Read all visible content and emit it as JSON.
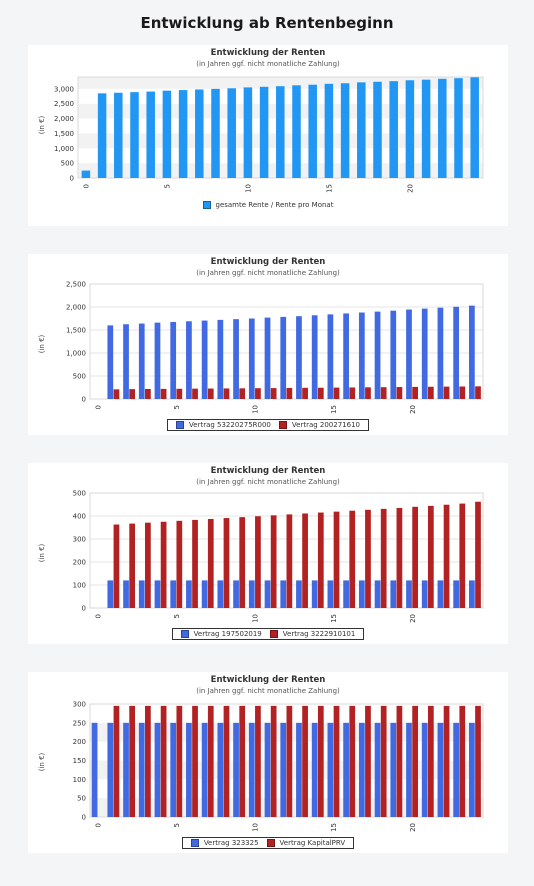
{
  "page": {
    "title": "Entwicklung ab Rentenbeginn"
  },
  "charts": [
    {
      "title": "Entwicklung der Renten",
      "subtitle": "(in Jahren ggf. nicht monatliche Zahlung)",
      "ylabel": "(in €)",
      "legend_bordered": false
    },
    {
      "title": "Entwicklung der Renten",
      "subtitle": "(in Jahren ggf. nicht monatliche Zahlung)",
      "ylabel": "(in €)",
      "legend_bordered": true
    },
    {
      "title": "Entwicklung der Renten",
      "subtitle": "(in Jahren ggf. nicht monatliche Zahlung)",
      "ylabel": "(in €)",
      "legend_bordered": true
    },
    {
      "title": "Entwicklung der Renten",
      "subtitle": "(in Jahren ggf. nicht monatliche Zahlung)",
      "ylabel": "(in €)",
      "legend_bordered": true
    }
  ],
  "chart_data": [
    {
      "type": "bar",
      "title": "Entwicklung der Renten",
      "subtitle": "(in Jahren ggf. nicht monatliche Zahlung)",
      "ylabel": "(in €)",
      "x": [
        0,
        1,
        2,
        3,
        4,
        5,
        6,
        7,
        8,
        9,
        10,
        11,
        12,
        13,
        14,
        15,
        16,
        17,
        18,
        19,
        20,
        21,
        22,
        23,
        24
      ],
      "x_ticks": [
        0,
        5,
        10,
        15,
        20
      ],
      "x_tick_labels": [
        "0",
        "5",
        "10",
        "15",
        "20"
      ],
      "y_ticks": [
        0,
        500,
        1000,
        1500,
        2000,
        2500,
        3000
      ],
      "y_tick_labels": [
        "0",
        "500",
        "1,000",
        "1,500",
        "2,000",
        "2,500",
        "3,000"
      ],
      "ylim": [
        0,
        3400
      ],
      "series": [
        {
          "name": "gesamte Rente / Rente pro Monat",
          "color": "#2196f3",
          "values": [
            250,
            2850,
            2870,
            2890,
            2910,
            2940,
            2960,
            2980,
            3000,
            3020,
            3050,
            3070,
            3090,
            3120,
            3140,
            3170,
            3190,
            3220,
            3240,
            3260,
            3290,
            3310,
            3340,
            3360,
            3390
          ]
        }
      ],
      "legend": "bottom",
      "grid": "horizontal bands"
    },
    {
      "type": "bar",
      "title": "Entwicklung der Renten",
      "subtitle": "(in Jahren ggf. nicht monatliche Zahlung)",
      "ylabel": "(in €)",
      "x": [
        1,
        2,
        3,
        4,
        5,
        6,
        7,
        8,
        9,
        10,
        11,
        12,
        13,
        14,
        15,
        16,
        17,
        18,
        19,
        20,
        21,
        22,
        23,
        24
      ],
      "x_ticks": [
        0,
        5,
        10,
        15,
        20
      ],
      "x_tick_labels": [
        "0",
        "5",
        "10",
        "15",
        "20"
      ],
      "y_ticks": [
        0,
        500,
        1000,
        1500,
        2000,
        2500
      ],
      "y_tick_labels": [
        "0",
        "500",
        "1,000",
        "1,500",
        "2,000",
        "2,500"
      ],
      "ylim": [
        0,
        2500
      ],
      "series": [
        {
          "name": "Vertrag 53220275R000",
          "color": "#4169e1",
          "values": [
            1600,
            1625,
            1640,
            1660,
            1675,
            1690,
            1705,
            1720,
            1735,
            1750,
            1770,
            1785,
            1800,
            1820,
            1840,
            1860,
            1880,
            1900,
            1920,
            1945,
            1965,
            1985,
            2005,
            2030
          ]
        },
        {
          "name": "Vertrag 200271610",
          "color": "#b22222",
          "values": [
            210,
            215,
            218,
            220,
            222,
            225,
            227,
            230,
            232,
            235,
            237,
            240,
            243,
            245,
            248,
            251,
            254,
            257,
            260,
            263,
            266,
            269,
            272,
            275
          ]
        }
      ],
      "legend": "bottom",
      "grid": "horizontal lines"
    },
    {
      "type": "bar",
      "title": "Entwicklung der Renten",
      "subtitle": "(in Jahren ggf. nicht monatliche Zahlung)",
      "ylabel": "(in €)",
      "x": [
        1,
        2,
        3,
        4,
        5,
        6,
        7,
        8,
        9,
        10,
        11,
        12,
        13,
        14,
        15,
        16,
        17,
        18,
        19,
        20,
        21,
        22,
        23,
        24
      ],
      "x_ticks": [
        0,
        5,
        10,
        15,
        20
      ],
      "x_tick_labels": [
        "0",
        "5",
        "10",
        "15",
        "20"
      ],
      "y_ticks": [
        0,
        100,
        200,
        300,
        400,
        500
      ],
      "y_tick_labels": [
        "0",
        "100",
        "200",
        "300",
        "400",
        "500"
      ],
      "ylim": [
        0,
        500
      ],
      "series": [
        {
          "name": "Vertrag 197502019",
          "color": "#4169e1",
          "values": [
            120,
            120,
            120,
            120,
            120,
            120,
            120,
            120,
            120,
            120,
            120,
            120,
            120,
            120,
            120,
            120,
            120,
            120,
            120,
            120,
            120,
            120,
            120,
            120
          ]
        },
        {
          "name": "Vertrag 3222910101",
          "color": "#b22222",
          "values": [
            363,
            367,
            371,
            375,
            379,
            383,
            387,
            391,
            395,
            399,
            403,
            407,
            411,
            415,
            419,
            423,
            427,
            431,
            435,
            440,
            444,
            449,
            454,
            462
          ]
        }
      ],
      "legend": "bottom",
      "grid": "horizontal lines"
    },
    {
      "type": "bar",
      "title": "Entwicklung der Renten",
      "subtitle": "(in Jahren ggf. nicht monatliche Zahlung)",
      "ylabel": "(in €)",
      "x": [
        0,
        1,
        2,
        3,
        4,
        5,
        6,
        7,
        8,
        9,
        10,
        11,
        12,
        13,
        14,
        15,
        16,
        17,
        18,
        19,
        20,
        21,
        22,
        23,
        24
      ],
      "x_ticks": [
        0,
        5,
        10,
        15,
        20
      ],
      "x_tick_labels": [
        "0",
        "5",
        "10",
        "15",
        "20"
      ],
      "y_ticks": [
        0,
        50,
        100,
        150,
        200,
        250,
        300
      ],
      "y_tick_labels": [
        "0",
        "50",
        "100",
        "150",
        "200",
        "250",
        "300"
      ],
      "ylim": [
        0,
        300
      ],
      "series": [
        {
          "name": "Vertrag 323325",
          "color": "#4169e1",
          "values": [
            250,
            250,
            250,
            250,
            250,
            250,
            250,
            250,
            250,
            250,
            250,
            250,
            250,
            250,
            250,
            250,
            250,
            250,
            250,
            250,
            250,
            250,
            250,
            250,
            250
          ]
        },
        {
          "name": "Vertrag KapitalPRV",
          "color": "#b22222",
          "values": [
            null,
            295,
            295,
            295,
            295,
            295,
            295,
            295,
            295,
            295,
            295,
            295,
            295,
            295,
            295,
            295,
            295,
            295,
            295,
            295,
            295,
            295,
            295,
            295,
            295
          ]
        }
      ],
      "legend": "bottom",
      "grid": "horizontal bands"
    }
  ]
}
